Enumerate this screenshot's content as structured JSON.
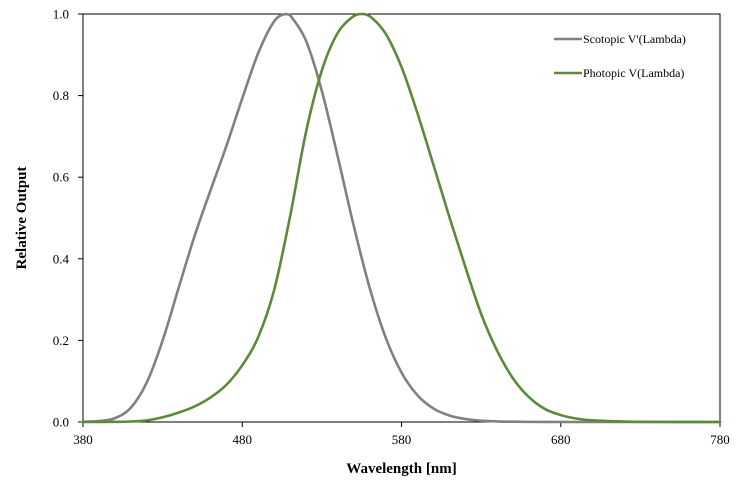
{
  "chart_data": {
    "type": "line",
    "title": "",
    "xlabel": "Wavelength [nm]",
    "ylabel": "Relative Output",
    "xlim": [
      380,
      780
    ],
    "ylim": [
      0,
      1.0
    ],
    "x_ticks": [
      380,
      480,
      580,
      680,
      780
    ],
    "x_tick_labels": [
      "380",
      "480",
      "580",
      "680",
      "780"
    ],
    "y_ticks": [
      0,
      0.2,
      0.4,
      0.6,
      0.8,
      1.0
    ],
    "y_tick_labels": [
      "0.0",
      "0.2",
      "0.4",
      "0.6",
      "0.8",
      "1.0"
    ],
    "grid": false,
    "legend_position": "top-right",
    "series": [
      {
        "name": "Scotopic V'(Lambda)",
        "color": "#808080",
        "x": [
          380,
          390,
          400,
          410,
          420,
          430,
          440,
          450,
          460,
          470,
          480,
          490,
          500,
          507,
          510,
          520,
          530,
          540,
          550,
          560,
          570,
          580,
          590,
          600,
          610,
          620,
          630,
          640,
          650,
          660,
          670,
          680,
          690,
          700,
          720,
          740,
          760,
          780
        ],
        "y": [
          0.0006,
          0.0022,
          0.0093,
          0.0348,
          0.0966,
          0.1998,
          0.3281,
          0.455,
          0.567,
          0.676,
          0.793,
          0.904,
          0.982,
          1.0,
          0.997,
          0.935,
          0.811,
          0.65,
          0.481,
          0.3288,
          0.2076,
          0.1212,
          0.0655,
          0.0332,
          0.0159,
          0.0074,
          0.0033,
          0.0015,
          0.0007,
          0.0003,
          0.0001,
          0.0001,
          0.0,
          0.0,
          0.0,
          0.0,
          0.0,
          0.0
        ]
      },
      {
        "name": "Photopic V(Lambda)",
        "color": "#5a8a3a",
        "x": [
          380,
          390,
          400,
          410,
          420,
          430,
          440,
          450,
          460,
          470,
          480,
          490,
          500,
          510,
          520,
          530,
          540,
          550,
          555,
          560,
          570,
          580,
          590,
          600,
          610,
          620,
          630,
          640,
          650,
          660,
          670,
          680,
          690,
          700,
          720,
          740,
          760,
          780
        ],
        "y": [
          0.0,
          0.0001,
          0.0004,
          0.0012,
          0.004,
          0.0116,
          0.023,
          0.038,
          0.06,
          0.091,
          0.139,
          0.208,
          0.323,
          0.503,
          0.71,
          0.862,
          0.954,
          0.995,
          1.0,
          0.995,
          0.952,
          0.87,
          0.757,
          0.631,
          0.503,
          0.381,
          0.265,
          0.175,
          0.107,
          0.061,
          0.032,
          0.017,
          0.0082,
          0.0041,
          0.001,
          0.0003,
          0.0001,
          0.0
        ]
      }
    ]
  }
}
